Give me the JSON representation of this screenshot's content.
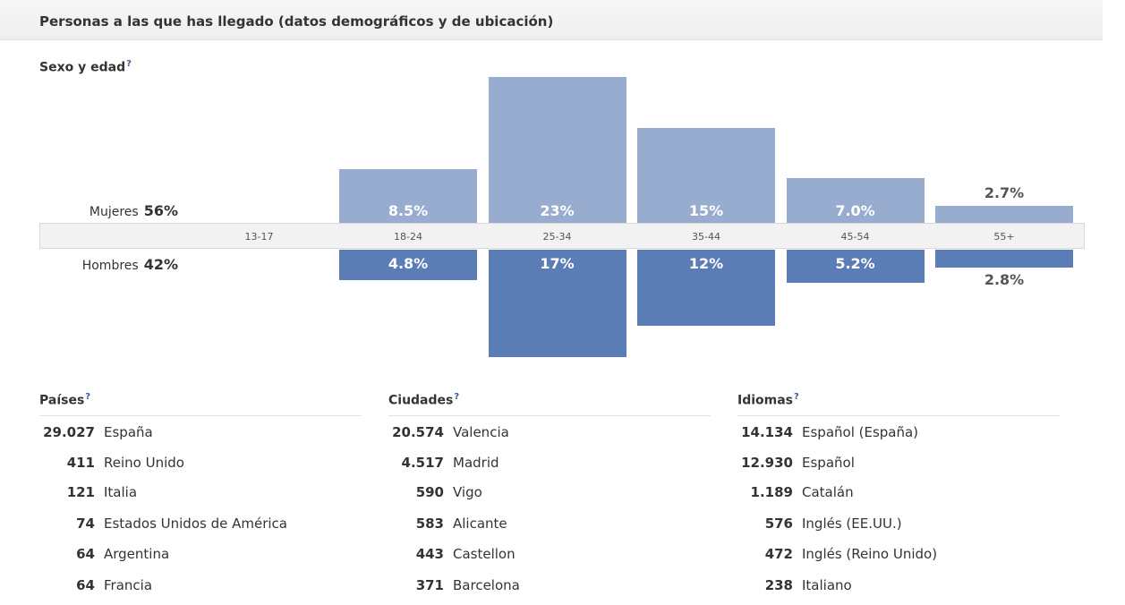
{
  "header": {
    "title": "Personas a las que has llegado (datos demográficos y de ubicación)"
  },
  "help_glyph": "?",
  "sex_age": {
    "title": "Sexo y edad",
    "women": {
      "label": "Mujeres",
      "pct": "56%"
    },
    "men": {
      "label": "Hombres",
      "pct": "42%"
    }
  },
  "chart_data": {
    "type": "bar",
    "categories": [
      "13-17",
      "18-24",
      "25-34",
      "35-44",
      "45-54",
      "55+"
    ],
    "series": [
      {
        "name": "Mujeres",
        "values": [
          null,
          8.5,
          23,
          15,
          7.0,
          2.7
        ],
        "labels": [
          "",
          "8.5%",
          "23%",
          "15%",
          "7.0%",
          "2.7%"
        ],
        "color": "#98acd0"
      },
      {
        "name": "Hombres",
        "values": [
          null,
          4.8,
          17,
          12,
          5.2,
          2.8
        ],
        "labels": [
          "",
          "4.8%",
          "17%",
          "12%",
          "5.2%",
          "2.8%"
        ],
        "color": "#5b7db6"
      }
    ]
  },
  "countries": {
    "title": "Países",
    "rows": [
      {
        "count": "29.027",
        "name": "España"
      },
      {
        "count": "411",
        "name": "Reino Unido"
      },
      {
        "count": "121",
        "name": "Italia"
      },
      {
        "count": "74",
        "name": "Estados Unidos de América"
      },
      {
        "count": "64",
        "name": "Argentina"
      },
      {
        "count": "64",
        "name": "Francia"
      }
    ]
  },
  "cities": {
    "title": "Ciudades",
    "rows": [
      {
        "count": "20.574",
        "name": "Valencia"
      },
      {
        "count": "4.517",
        "name": "Madrid"
      },
      {
        "count": "590",
        "name": "Vigo"
      },
      {
        "count": "583",
        "name": "Alicante"
      },
      {
        "count": "443",
        "name": "Castellon"
      },
      {
        "count": "371",
        "name": "Barcelona"
      }
    ]
  },
  "languages": {
    "title": "Idiomas",
    "rows": [
      {
        "count": "14.134",
        "name": "Español (España)"
      },
      {
        "count": "12.930",
        "name": "Español"
      },
      {
        "count": "1.189",
        "name": "Catalán"
      },
      {
        "count": "576",
        "name": "Inglés (EE.UU.)"
      },
      {
        "count": "472",
        "name": "Inglés (Reino Unido)"
      },
      {
        "count": "238",
        "name": "Italiano"
      }
    ]
  }
}
